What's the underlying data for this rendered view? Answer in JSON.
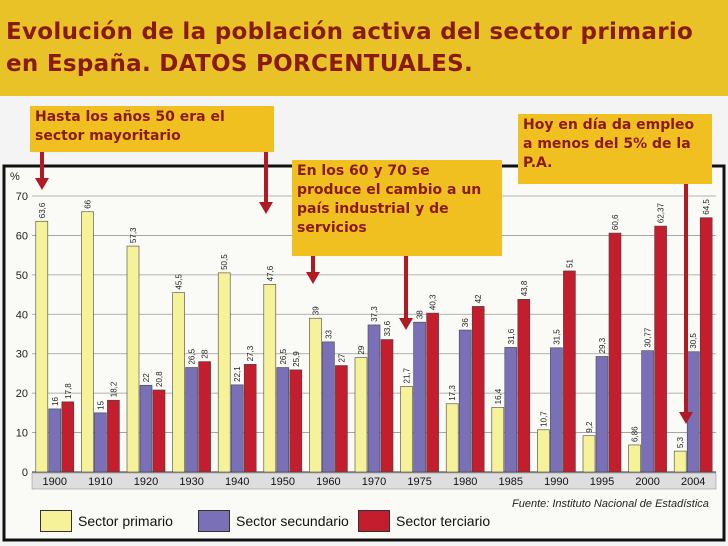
{
  "title": "Evolución de la población activa del sector primario en España. DATOS PORCENTUALES.",
  "notes": {
    "n1": "Hasta los años 50 era el sector mayoritario",
    "n2": "En los 60 y 70 se produce el cambio a un país industrial y de servicios",
    "n3": "Hoy en día da empleo a menos del 5% de la P.A."
  },
  "source": "Fuente: Instituto Nacional de Estadística",
  "colors": {
    "primario": "#f6f29a",
    "secundario": "#7a70b8",
    "terciario": "#c41e2e",
    "arrow": "#b01a22",
    "title_bg": "#e8c227",
    "note_bg": "#f0c020"
  },
  "chart_data": {
    "type": "bar",
    "ylabel": "%",
    "ylim": [
      0,
      70
    ],
    "yticks": [
      0,
      10,
      20,
      30,
      40,
      50,
      60,
      70
    ],
    "grid": true,
    "legend_position": "bottom",
    "categories": [
      "1900",
      "1910",
      "1920",
      "1930",
      "1940",
      "1950",
      "1960",
      "1970",
      "1975",
      "1980",
      "1985",
      "1990",
      "1995",
      "2000",
      "2004"
    ],
    "series": [
      {
        "name": "Sector primario",
        "values": [
          63.6,
          66,
          57.3,
          45.5,
          50.5,
          47.6,
          39,
          29,
          21.7,
          17.3,
          16.4,
          10.7,
          9.2,
          6.86,
          5.3
        ],
        "labels": [
          "63,6",
          "66",
          "57,3",
          "45,5",
          "50,5",
          "47,6",
          "39",
          "29",
          "21,7",
          "17,3",
          "16,4",
          "10,7",
          "9,2",
          "6,86",
          "5,3"
        ]
      },
      {
        "name": "Sector secundario",
        "values": [
          16,
          15,
          22,
          26.5,
          22.1,
          26.5,
          33,
          37.3,
          38,
          36,
          31.6,
          31.5,
          29.3,
          30.77,
          30.5
        ],
        "labels": [
          "16",
          "15",
          "22",
          "26,5",
          "22,1",
          "26,5",
          "33",
          "37,3",
          "38",
          "36",
          "31,6",
          "31,5",
          "29,3",
          "30,77",
          "30,5"
        ]
      },
      {
        "name": "Sector terciario",
        "values": [
          17.8,
          18.2,
          20.8,
          28,
          27.3,
          25.9,
          27,
          33.6,
          40.3,
          42,
          43.8,
          51,
          60.6,
          62.37,
          64.5
        ],
        "labels": [
          "17,8",
          "18,2",
          "20,8",
          "28",
          "27,3",
          "25,9",
          "27",
          "33,6",
          "40,3",
          "42",
          "43,8",
          "51",
          "60,6",
          "62,37",
          "64,5"
        ]
      }
    ]
  }
}
